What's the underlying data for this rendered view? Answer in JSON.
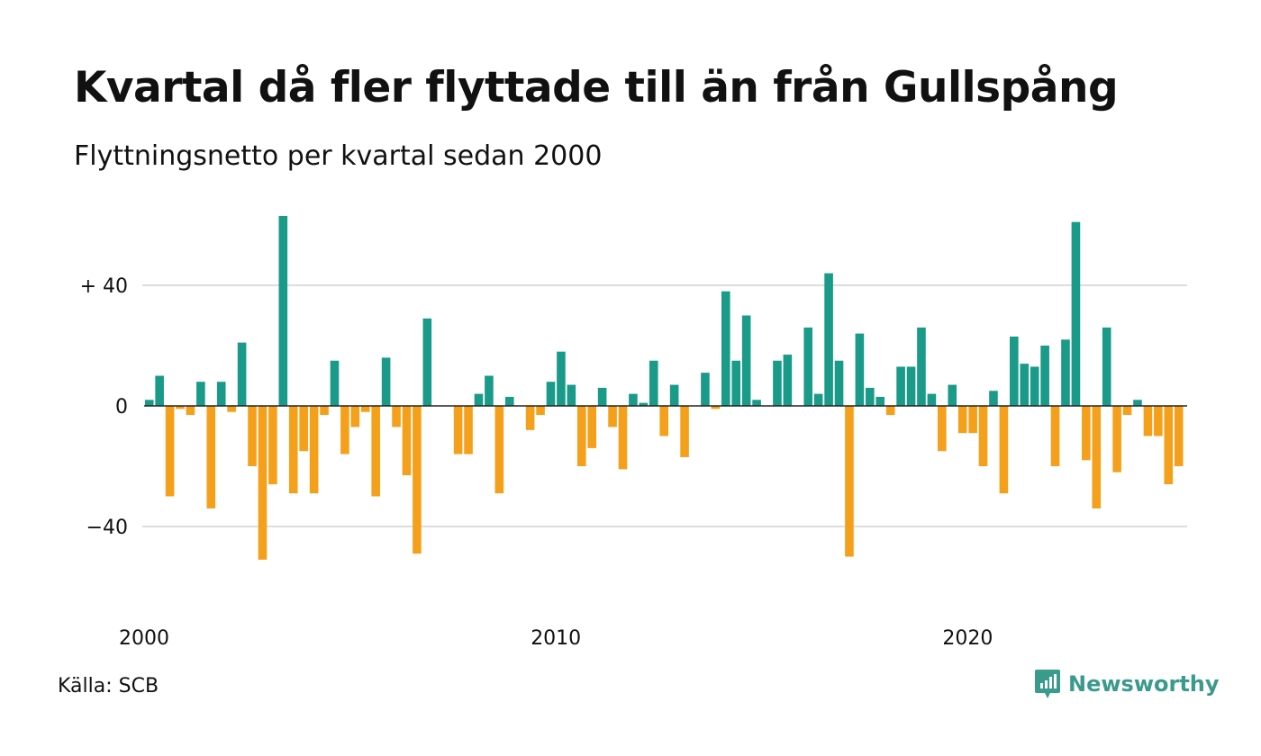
{
  "title": "Kvartal då fler flyttade till än från Gullspång",
  "subtitle": "Flyttningsnetto per kvartal sedan 2000",
  "source": "Källa: SCB",
  "brand": {
    "name": "Newsworthy",
    "icon": "newsworthy-chart-bubble-icon"
  },
  "colors": {
    "positive": "#1a9a88",
    "negative": "#f5a01a",
    "grid": "#dddddd",
    "zero": "#222222"
  },
  "chart_data": {
    "type": "bar",
    "title": "Kvartal då fler flyttade till än från Gullspång",
    "subtitle": "Flyttningsnetto per kvartal sedan 2000",
    "ylabel": "",
    "xlabel": "",
    "grid": true,
    "ylim": [
      -58,
      66
    ],
    "y_ticks": [
      {
        "value": 40,
        "label": "+ 40"
      },
      {
        "value": 0,
        "label": "0"
      },
      {
        "value": -40,
        "label": "−40"
      }
    ],
    "x_ticks": [
      {
        "value": 2000,
        "label": "2000"
      },
      {
        "value": 2010,
        "label": "2010"
      },
      {
        "value": 2020,
        "label": "2020"
      }
    ],
    "x_start": "2000 Q1",
    "values": [
      2,
      10,
      -30,
      -1,
      -3,
      8,
      -34,
      8,
      -2,
      21,
      -20,
      -51,
      -26,
      63,
      -29,
      -15,
      -29,
      -3,
      15,
      -16,
      -7,
      -2,
      -30,
      16,
      -7,
      -23,
      -49,
      29,
      0,
      0,
      -16,
      -16,
      4,
      10,
      -29,
      3,
      0,
      -8,
      -3,
      8,
      18,
      7,
      -20,
      -14,
      6,
      -7,
      -21,
      4,
      1,
      15,
      -10,
      7,
      -17,
      0,
      11,
      -1,
      38,
      15,
      30,
      2,
      0,
      15,
      17,
      0,
      26,
      4,
      44,
      15,
      -50,
      24,
      6,
      3,
      -3,
      13,
      13,
      26,
      4,
      -15,
      7,
      -9,
      -9,
      -20,
      5,
      -29,
      23,
      14,
      13,
      20,
      -20,
      22,
      61,
      -18,
      -34,
      26,
      -22,
      -3,
      2,
      -10,
      -10,
      -26,
      -20
    ]
  }
}
